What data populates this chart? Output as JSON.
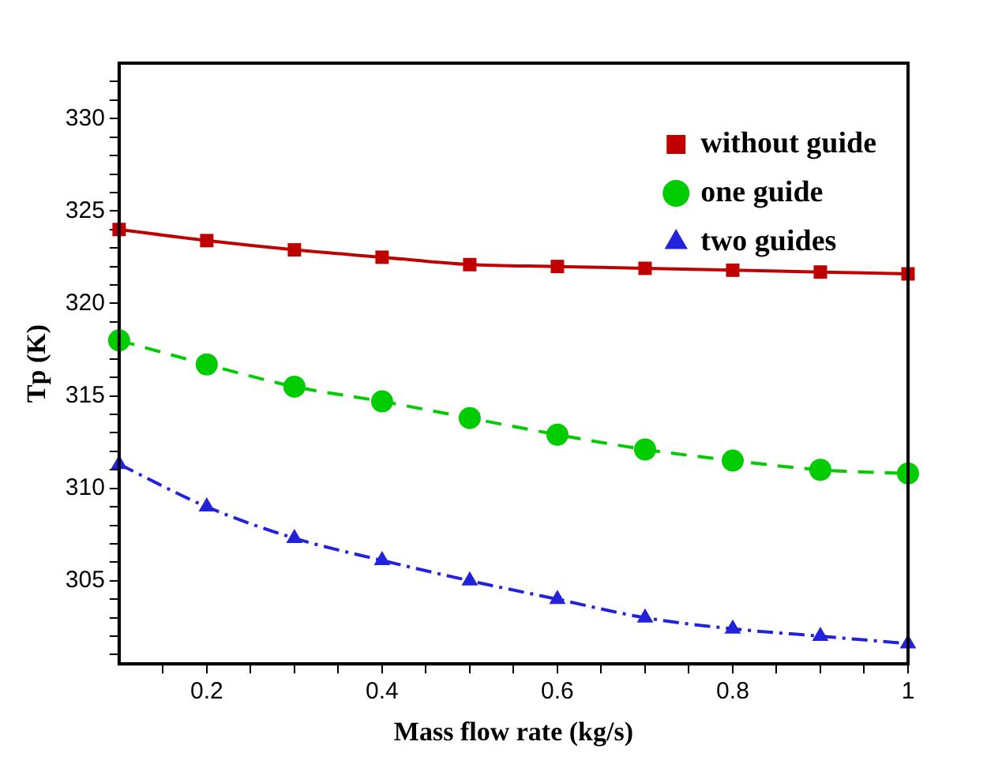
{
  "chart_data": {
    "type": "line",
    "xlabel": "Mass flow rate (kg/s)",
    "ylabel": "Tp (K)",
    "x": [
      0.1,
      0.2,
      0.3,
      0.4,
      0.5,
      0.6,
      0.7,
      0.8,
      0.9,
      1.0
    ],
    "series": [
      {
        "name": "without guide",
        "color": "#c00000",
        "marker": "square",
        "line_style": "solid",
        "values": [
          324.0,
          323.4,
          322.9,
          322.5,
          322.1,
          322.0,
          321.9,
          321.8,
          321.7,
          321.6
        ]
      },
      {
        "name": "one guide",
        "color": "#00cc00",
        "marker": "circle",
        "line_style": "dashed",
        "values": [
          318.0,
          316.7,
          315.5,
          314.7,
          313.8,
          312.9,
          312.1,
          311.5,
          311.0,
          310.8
        ]
      },
      {
        "name": "two guides",
        "color": "#2222dd",
        "marker": "triangle",
        "line_style": "dashdot",
        "values": [
          311.3,
          309.0,
          307.3,
          306.1,
          305.0,
          304.0,
          303.0,
          302.4,
          302.0,
          301.6
        ]
      }
    ],
    "xlim": [
      0.1,
      1.0
    ],
    "xticks": [
      {
        "value": 0.15,
        "label": null
      },
      0.2,
      {
        "value": 0.25,
        "label": null
      },
      {
        "value": 0.3,
        "label": null
      },
      {
        "value": 0.35,
        "label": null
      },
      0.4,
      {
        "value": 0.45,
        "label": null
      },
      {
        "value": 0.5,
        "label": null
      },
      {
        "value": 0.55,
        "label": null
      },
      0.6,
      {
        "value": 0.65,
        "label": null
      },
      {
        "value": 0.7,
        "label": null
      },
      {
        "value": 0.75,
        "label": null
      },
      0.8,
      {
        "value": 0.85,
        "label": null
      },
      {
        "value": 0.9,
        "label": null
      },
      {
        "value": 0.95,
        "label": null
      },
      1
    ],
    "ylim": [
      300.5,
      333
    ],
    "yticks": [
      {
        "value": 301,
        "label": null
      },
      {
        "value": 302,
        "label": null
      },
      {
        "value": 303,
        "label": null
      },
      {
        "value": 304,
        "label": null
      },
      305,
      {
        "value": 306,
        "label": null
      },
      {
        "value": 307,
        "label": null
      },
      {
        "value": 308,
        "label": null
      },
      {
        "value": 309,
        "label": null
      },
      310,
      {
        "value": 311,
        "label": null
      },
      {
        "value": 312,
        "label": null
      },
      {
        "value": 313,
        "label": null
      },
      {
        "value": 314,
        "label": null
      },
      315,
      {
        "value": 316,
        "label": null
      },
      {
        "value": 317,
        "label": null
      },
      {
        "value": 318,
        "label": null
      },
      {
        "value": 319,
        "label": null
      },
      320,
      {
        "value": 321,
        "label": null
      },
      {
        "value": 322,
        "label": null
      },
      {
        "value": 323,
        "label": null
      },
      {
        "value": 324,
        "label": null
      },
      325,
      {
        "value": 326,
        "label": null
      },
      {
        "value": 327,
        "label": null
      },
      {
        "value": 328,
        "label": null
      },
      {
        "value": 329,
        "label": null
      },
      330,
      {
        "value": 331,
        "label": null
      },
      {
        "value": 332,
        "label": null
      }
    ],
    "grid": false,
    "legend": "top right"
  }
}
